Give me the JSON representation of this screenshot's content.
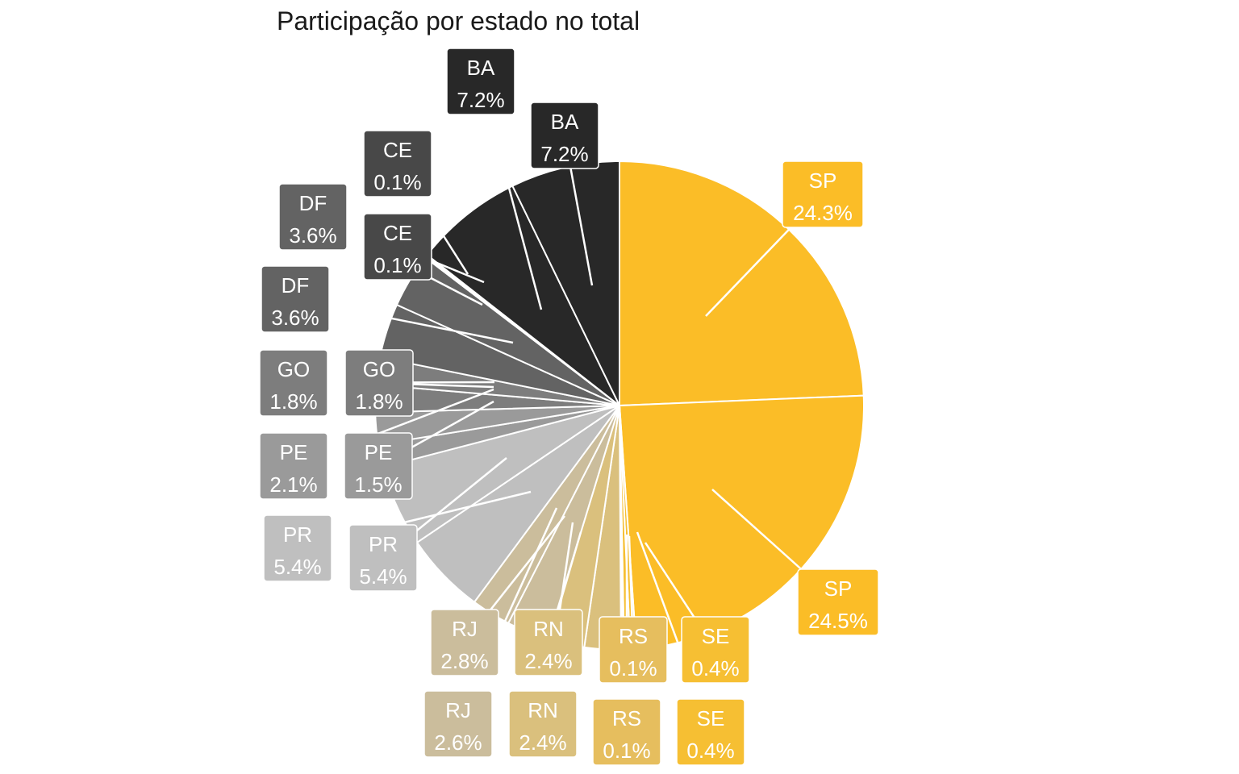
{
  "chart_data": {
    "type": "pie",
    "title": "Participação por estado no total",
    "slices": [
      {
        "state": "SP",
        "value": 24.3,
        "color": "#fbbd27"
      },
      {
        "state": "SP",
        "value": 24.5,
        "color": "#fbbd27"
      },
      {
        "state": "SE",
        "value": 0.4,
        "color": "#f6bf33"
      },
      {
        "state": "SE",
        "value": 0.4,
        "color": "#f6bf33"
      },
      {
        "state": "RS",
        "value": 0.1,
        "color": "#e6be5e"
      },
      {
        "state": "RS",
        "value": 0.1,
        "color": "#e6be5e"
      },
      {
        "state": "RN",
        "value": 2.4,
        "color": "#dac07d"
      },
      {
        "state": "RN",
        "value": 2.4,
        "color": "#dac07d"
      },
      {
        "state": "RJ",
        "value": 2.8,
        "color": "#cbbd9c"
      },
      {
        "state": "RJ",
        "value": 2.6,
        "color": "#cbbd9c"
      },
      {
        "state": "PR",
        "value": 5.4,
        "color": "#bfbfbf"
      },
      {
        "state": "PR",
        "value": 5.4,
        "color": "#bfbfbf"
      },
      {
        "state": "PE",
        "value": 1.5,
        "color": "#9a9a9a"
      },
      {
        "state": "PE",
        "value": 2.1,
        "color": "#9a9a9a"
      },
      {
        "state": "GO",
        "value": 1.8,
        "color": "#7d7d7d"
      },
      {
        "state": "GO",
        "value": 1.8,
        "color": "#7d7d7d"
      },
      {
        "state": "DF",
        "value": 3.6,
        "color": "#636363"
      },
      {
        "state": "DF",
        "value": 3.6,
        "color": "#636363"
      },
      {
        "state": "CE",
        "value": 0.1,
        "color": "#484848"
      },
      {
        "state": "CE",
        "value": 0.1,
        "color": "#484848"
      },
      {
        "state": "BA",
        "value": 7.2,
        "color": "#282828"
      },
      {
        "state": "BA",
        "value": 7.2,
        "color": "#282828"
      }
    ]
  }
}
